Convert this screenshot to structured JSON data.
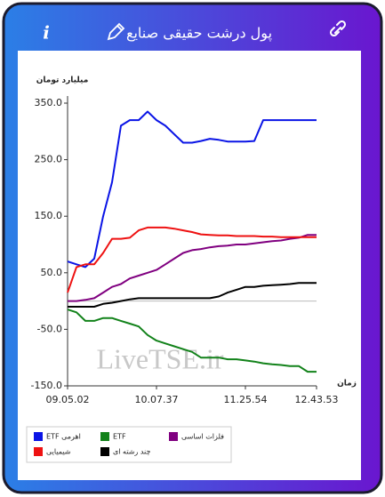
{
  "header": {
    "info": "i"
  },
  "chart_data": {
    "type": "line",
    "title": "پول درشت حقیقی صنایع",
    "y_label": "میلیارد تومان",
    "x_label": "زمان",
    "watermark": "LiveTSE.ir",
    "categories": [
      "09.05.02",
      null,
      null,
      null,
      null,
      null,
      null,
      null,
      null,
      null,
      "10.07.37",
      null,
      null,
      null,
      null,
      null,
      null,
      null,
      null,
      null,
      "11.25.54",
      null,
      null,
      null,
      null,
      null,
      null,
      null,
      "12.43.53"
    ],
    "ylim": [
      -150,
      350
    ],
    "yticks": [
      {
        "value": 350,
        "label": "350.0"
      },
      {
        "value": 250,
        "label": "250.0"
      },
      {
        "value": 150,
        "label": "150.0"
      },
      {
        "value": 50,
        "label": "50.0"
      },
      {
        "value": -50,
        "label": "-50.0"
      },
      {
        "value": -150,
        "label": "-150.0"
      }
    ],
    "legend": "bottom",
    "series": [
      {
        "name": "ETF اهرمی",
        "color": "#0a14e6",
        "values": [
          70,
          65,
          60,
          75,
          150,
          210,
          310,
          320,
          320,
          335,
          320,
          310,
          295,
          280,
          280,
          283,
          287,
          285,
          282,
          282,
          282,
          283,
          320,
          320,
          320,
          320,
          320,
          320,
          320
        ]
      },
      {
        "name": "ETF",
        "color": "#12821a",
        "values": [
          -15,
          -20,
          -35,
          -35,
          -30,
          -30,
          -35,
          -40,
          -45,
          -60,
          -70,
          -75,
          -80,
          -85,
          -90,
          -100,
          -100,
          -100,
          -103,
          -103,
          -105,
          -107,
          -110,
          -112,
          -113,
          -115,
          -115,
          -125,
          -125
        ]
      },
      {
        "name": "فلزات اساسی",
        "color": "#800080",
        "values": [
          0,
          0,
          2,
          5,
          15,
          25,
          30,
          40,
          45,
          50,
          55,
          65,
          75,
          85,
          90,
          92,
          95,
          97,
          98,
          100,
          100,
          102,
          104,
          106,
          107,
          110,
          112,
          117,
          117
        ]
      },
      {
        "name": "شیمیایی",
        "color": "#ee1111",
        "values": [
          15,
          60,
          65,
          65,
          85,
          110,
          110,
          112,
          125,
          130,
          130,
          130,
          128,
          125,
          122,
          118,
          117,
          116,
          116,
          115,
          115,
          115,
          114,
          114,
          113,
          113,
          113,
          113,
          113
        ]
      },
      {
        "name": "چند رشته ای",
        "color": "#000000",
        "values": [
          -10,
          -10,
          -10,
          -10,
          -5,
          -3,
          0,
          3,
          5,
          5,
          5,
          5,
          5,
          5,
          5,
          5,
          5,
          8,
          15,
          20,
          25,
          25,
          27,
          28,
          29,
          30,
          32,
          32,
          32
        ]
      }
    ]
  }
}
